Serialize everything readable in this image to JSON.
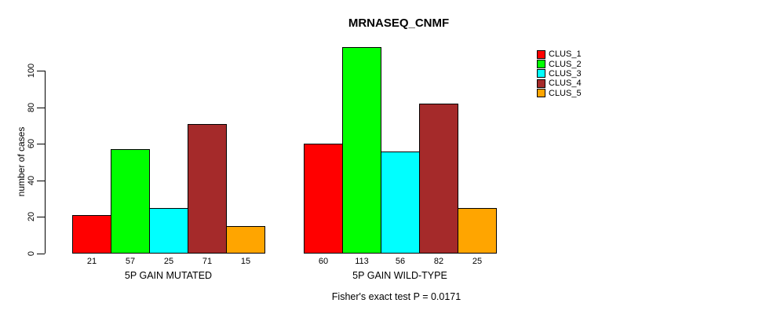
{
  "chart_data": {
    "type": "bar",
    "title": "MRNASEQ_CNMF",
    "ylabel": "number of cases",
    "xlabel": "",
    "annotation": "Fisher's exact test P = 0.0171",
    "groups": [
      "5P GAIN MUTATED",
      "5P GAIN WILD-TYPE"
    ],
    "series": [
      {
        "name": "CLUS_1",
        "color": "#FF0000",
        "values": [
          21,
          60
        ]
      },
      {
        "name": "CLUS_2",
        "color": "#00FF00",
        "values": [
          57,
          113
        ]
      },
      {
        "name": "CLUS_3",
        "color": "#00FFFF",
        "values": [
          25,
          56
        ]
      },
      {
        "name": "CLUS_4",
        "color": "#A52A2A",
        "values": [
          71,
          82
        ]
      },
      {
        "name": "CLUS_5",
        "color": "#FFA500",
        "values": [
          15,
          25
        ]
      }
    ],
    "y_ticks": [
      0,
      20,
      40,
      60,
      80,
      100
    ],
    "ylim": [
      0,
      116
    ],
    "legend_position": "right",
    "grid": false,
    "background": "#FFFFFF",
    "axis_color": "#000000"
  }
}
